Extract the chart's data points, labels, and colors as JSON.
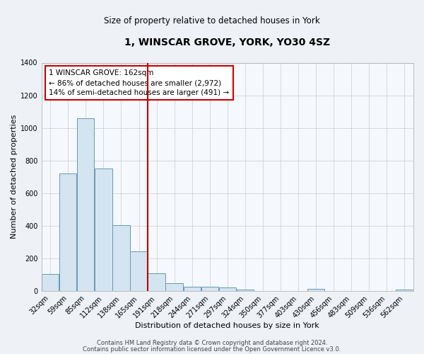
{
  "title": "1, WINSCAR GROVE, YORK, YO30 4SZ",
  "subtitle": "Size of property relative to detached houses in York",
  "xlabel": "Distribution of detached houses by size in York",
  "ylabel": "Number of detached properties",
  "bin_labels": [
    "32sqm",
    "59sqm",
    "85sqm",
    "112sqm",
    "138sqm",
    "165sqm",
    "191sqm",
    "218sqm",
    "244sqm",
    "271sqm",
    "297sqm",
    "324sqm",
    "350sqm",
    "377sqm",
    "403sqm",
    "430sqm",
    "456sqm",
    "483sqm",
    "509sqm",
    "536sqm",
    "562sqm"
  ],
  "bar_values": [
    105,
    720,
    1060,
    750,
    405,
    245,
    110,
    48,
    25,
    25,
    20,
    10,
    0,
    0,
    0,
    15,
    0,
    0,
    0,
    0,
    10
  ],
  "bar_color": "#d4e4f0",
  "bar_edge_color": "#6699bb",
  "red_line_x": 5.5,
  "annotation_line1": "1 WINSCAR GROVE: 162sqm",
  "annotation_line2": "← 86% of detached houses are smaller (2,972)",
  "annotation_line3": "14% of semi-detached houses are larger (491) →",
  "ylim": [
    0,
    1400
  ],
  "yticks": [
    0,
    200,
    400,
    600,
    800,
    1000,
    1200,
    1400
  ],
  "footer1": "Contains HM Land Registry data © Crown copyright and database right 2024.",
  "footer2": "Contains public sector information licensed under the Open Government Licence v3.0.",
  "bg_color": "#eef2f7",
  "plot_bg_color": "#f5f8fc",
  "grid_color": "#cccccc",
  "annotation_box_color": "#ffffff",
  "annotation_box_edge": "#cc0000",
  "title_fontsize": 10,
  "subtitle_fontsize": 8.5,
  "axis_label_fontsize": 8,
  "tick_fontsize": 7,
  "annotation_fontsize": 7.5,
  "footer_fontsize": 6
}
